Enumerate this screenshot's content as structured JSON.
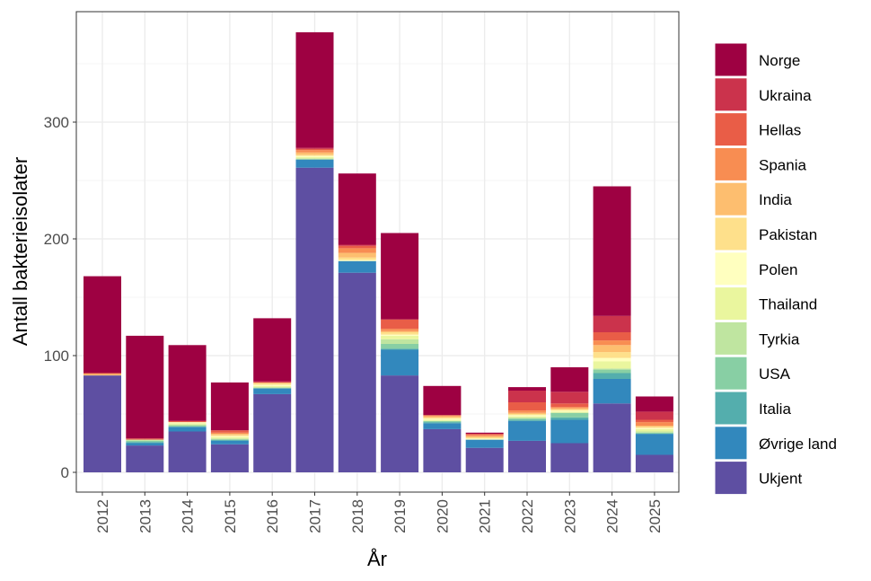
{
  "chart_data": {
    "type": "bar",
    "stacked": true,
    "xlabel": "År",
    "ylabel": "Antall bakterieisolater",
    "ylim": [
      0,
      385
    ],
    "yticks": [
      0,
      100,
      200,
      300
    ],
    "grid": true,
    "legend_position": "right",
    "categories": [
      "2012",
      "2013",
      "2014",
      "2015",
      "2016",
      "2017",
      "2018",
      "2019",
      "2020",
      "2021",
      "2022",
      "2023",
      "2024",
      "2025"
    ],
    "series": [
      {
        "name": "Ukjent",
        "color": "#5E4FA2",
        "values": [
          83,
          23,
          35,
          24,
          67,
          261,
          171,
          83,
          37,
          21,
          27,
          25,
          59,
          15
        ]
      },
      {
        "name": "Øvrige land",
        "color": "#3288BD",
        "values": [
          0,
          2,
          4,
          3,
          5,
          7,
          10,
          22,
          5,
          7,
          17,
          20,
          21,
          18
        ]
      },
      {
        "name": "Italia",
        "color": "#54AEAD",
        "values": [
          0,
          1,
          0,
          1,
          0,
          0,
          0,
          1,
          1,
          0,
          1,
          2,
          5,
          0
        ]
      },
      {
        "name": "USA",
        "color": "#88CFA4",
        "values": [
          0,
          1,
          1,
          0,
          0,
          0,
          0,
          4,
          1,
          0,
          1,
          4,
          3,
          1
        ]
      },
      {
        "name": "Tyrkia",
        "color": "#BFE5A0",
        "values": [
          0,
          1,
          1,
          1,
          1,
          1,
          0,
          4,
          0,
          0,
          1,
          0,
          1,
          1
        ]
      },
      {
        "name": "Thailand",
        "color": "#EAF69E",
        "values": [
          0,
          0,
          1,
          1,
          1,
          1,
          0,
          3,
          1,
          0,
          1,
          1,
          6,
          2
        ]
      },
      {
        "name": "Polen",
        "color": "#FFFFBF",
        "values": [
          0,
          0,
          1,
          1,
          1,
          1,
          1,
          1,
          1,
          1,
          1,
          1,
          3,
          1
        ]
      },
      {
        "name": "Pakistan",
        "color": "#FEE08B",
        "values": [
          0,
          0,
          0,
          1,
          1,
          1,
          2,
          2,
          1,
          1,
          1,
          1,
          5,
          1
        ]
      },
      {
        "name": "India",
        "color": "#FDBE6F",
        "values": [
          1,
          0,
          0,
          1,
          1,
          2,
          4,
          1,
          1,
          1,
          1,
          1,
          6,
          1
        ]
      },
      {
        "name": "Spania",
        "color": "#F88D52",
        "values": [
          1,
          0,
          0,
          1,
          0,
          2,
          4,
          2,
          1,
          1,
          2,
          1,
          4,
          3
        ]
      },
      {
        "name": "Hellas",
        "color": "#E95D47",
        "values": [
          0,
          1,
          1,
          2,
          0,
          1,
          2,
          8,
          0,
          1,
          7,
          3,
          7,
          2
        ]
      },
      {
        "name": "Ukraina",
        "color": "#CB334C",
        "values": [
          0,
          0,
          0,
          0,
          1,
          1,
          1,
          0,
          0,
          0,
          10,
          10,
          14,
          7
        ]
      },
      {
        "name": "Norge",
        "color": "#9E0142",
        "values": [
          83,
          88,
          65,
          41,
          54,
          99,
          61,
          74,
          25,
          1,
          3,
          21,
          111,
          13
        ]
      }
    ]
  }
}
